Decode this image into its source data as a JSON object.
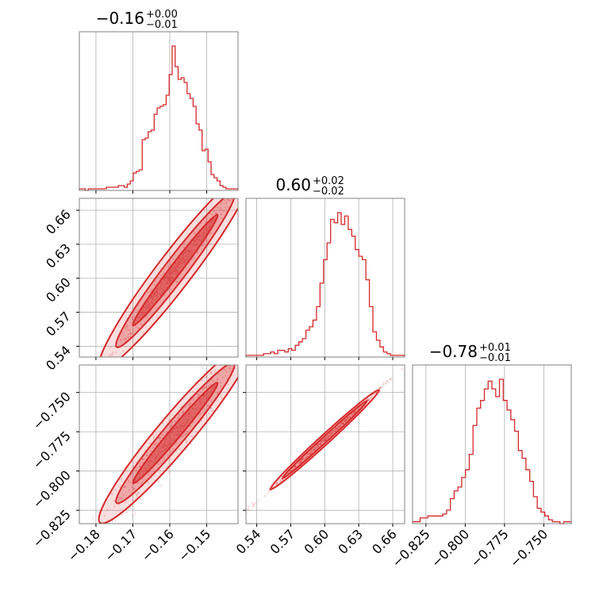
{
  "chart_data": {
    "type": "corner",
    "color": "#d62728",
    "parameters": [
      {
        "title": {
          "value": "−0.16",
          "plus": "+0.00",
          "minus": "−0.01"
        },
        "range": [
          -0.1845,
          -0.1415
        ],
        "ticks": [
          -0.18,
          -0.17,
          -0.16,
          -0.15
        ],
        "tick_labels": [
          "−0.18",
          "−0.17",
          "−0.16",
          "−0.15"
        ]
      },
      {
        "title": {
          "value": "0.60",
          "plus": "+0.02",
          "minus": "−0.02"
        },
        "range": [
          0.5305,
          0.6705
        ],
        "ticks": [
          0.54,
          0.57,
          0.6,
          0.63,
          0.66
        ],
        "tick_labels": [
          "0.54",
          "0.57",
          "0.60",
          "0.63",
          "0.66"
        ]
      },
      {
        "title": {
          "value": "−0.78",
          "plus": "+0.01",
          "minus": "−0.01"
        },
        "range": [
          -0.8335,
          -0.7325
        ],
        "ticks": [
          -0.825,
          -0.8,
          -0.775,
          -0.75
        ],
        "tick_labels": [
          "−0.825",
          "−0.800",
          "−0.775",
          "−0.750"
        ]
      }
    ],
    "histograms": [
      {
        "param": 0,
        "counts": [
          1,
          1,
          0,
          1,
          1,
          1,
          1,
          1,
          1,
          2,
          2,
          2,
          2,
          3,
          3,
          2,
          4,
          6,
          11,
          12,
          13,
          32,
          33,
          37,
          38,
          48,
          52,
          53,
          54,
          60,
          73,
          91,
          78,
          70,
          71,
          68,
          61,
          58,
          53,
          42,
          38,
          25,
          26,
          18,
          10,
          8,
          6,
          3,
          2,
          1,
          1,
          1,
          1
        ]
      },
      {
        "param": 1,
        "counts": [
          1,
          1,
          1,
          1,
          1,
          2,
          2,
          3,
          2,
          4,
          4,
          3,
          5,
          4,
          7,
          9,
          11,
          16,
          18,
          22,
          30,
          44,
          58,
          68,
          82,
          80,
          86,
          79,
          84,
          76,
          72,
          64,
          60,
          58,
          46,
          30,
          15,
          10,
          6,
          3,
          2,
          1,
          1,
          1,
          1
        ]
      },
      {
        "param": 2,
        "counts": [
          1,
          1,
          3,
          3,
          4,
          4,
          4,
          4,
          5,
          7,
          13,
          17,
          19,
          24,
          28,
          36,
          51,
          60,
          64,
          70,
          74,
          70,
          66,
          75,
          64,
          59,
          54,
          48,
          38,
          34,
          28,
          22,
          14,
          8,
          6,
          4,
          2,
          1,
          1,
          0,
          1,
          1
        ]
      }
    ],
    "scatter_pairs": [
      {
        "x": 0,
        "y": 1,
        "slope": 4.27,
        "intercept": 1.284,
        "sx": 0.0085,
        "sy": 0.0035,
        "shape": "banana"
      },
      {
        "x": 0,
        "y": 2,
        "slope": 2.8,
        "intercept": -0.332,
        "sx": 0.0085,
        "sy": 0.0048,
        "shape": "banana"
      },
      {
        "x": 1,
        "y": 2,
        "slope": 0.66,
        "intercept": -1.176,
        "sx": 0.02,
        "sy": 0.0009,
        "shape": "line"
      }
    ]
  }
}
